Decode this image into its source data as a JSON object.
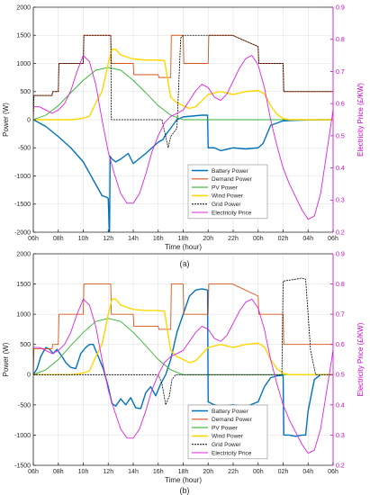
{
  "chart_data": [
    {
      "type": "line",
      "caption": "(a)",
      "xlabel": "Time (hour)",
      "ylabel": "Power (W)",
      "y2label": "Electricity Price (£/KW)",
      "xticklabels": [
        "06h",
        "08h",
        "10h",
        "12h",
        "14h",
        "16h",
        "18h",
        "20h",
        "22h",
        "00h",
        "02h",
        "04h",
        "06h"
      ],
      "xlim": [
        6,
        30
      ],
      "ylim": [
        -2000,
        2000
      ],
      "y2lim": [
        0.2,
        0.9
      ],
      "yticks": [
        -2000,
        -1500,
        -1000,
        -500,
        0,
        500,
        1000,
        1500,
        2000
      ],
      "y2ticks": [
        0.2,
        0.3,
        0.4,
        0.5,
        0.6,
        0.7,
        0.8,
        0.9
      ],
      "grid": true,
      "legend_position": "bottom-center",
      "series": [
        {
          "name": "Battery Power",
          "color": "#0072bd",
          "axis": "left",
          "width": 1.4,
          "x": [
            6,
            7,
            8,
            9,
            10,
            10.5,
            11,
            11.5,
            11.9,
            12.0,
            12.1,
            12.15,
            12.3,
            12.6,
            13,
            13.6,
            14,
            15,
            16,
            16.4,
            16.5,
            17,
            17.5,
            18,
            18.5,
            19,
            19.5,
            19.95,
            20.0,
            20.5,
            21,
            22,
            23,
            24,
            24.4,
            25,
            26,
            27,
            28,
            29,
            30
          ],
          "y": [
            0,
            -120,
            -300,
            -500,
            -750,
            -950,
            -1150,
            -1350,
            -1380,
            -1400,
            -2100,
            -650,
            -700,
            -750,
            -700,
            -600,
            -780,
            -600,
            -400,
            -350,
            -300,
            -150,
            0,
            50,
            60,
            70,
            80,
            80,
            -500,
            -500,
            -550,
            -500,
            -520,
            -500,
            -420,
            -100,
            -20,
            -10,
            -5,
            -2,
            0
          ]
        },
        {
          "name": "Demand Power",
          "color": "#d95319",
          "axis": "left",
          "width": 0.9,
          "x": [
            6,
            6.05,
            7.5,
            7.55,
            8,
            8.05,
            10,
            10.05,
            12.2,
            12.25,
            14,
            14.05,
            16,
            16.05,
            17,
            17.05,
            18,
            18.05,
            20,
            20.05,
            21.9,
            21.95,
            24,
            24.05,
            26,
            26.05,
            30
          ],
          "y": [
            0,
            430,
            430,
            500,
            500,
            1000,
            1000,
            1500,
            1500,
            1000,
            1000,
            800,
            800,
            750,
            750,
            1500,
            1500,
            1000,
            1000,
            1500,
            1500,
            1500,
            1300,
            1000,
            1000,
            500,
            500
          ]
        },
        {
          "name": "PV Power",
          "color": "#33b233",
          "axis": "left",
          "width": 0.9,
          "x": [
            6,
            7,
            8,
            9,
            10,
            11,
            12,
            13,
            14,
            15,
            16,
            17,
            18,
            18.5,
            30
          ],
          "y": [
            0,
            80,
            250,
            480,
            700,
            880,
            930,
            880,
            700,
            480,
            250,
            80,
            0,
            0,
            0
          ]
        },
        {
          "name": "Wind Power",
          "color": "#ffd700",
          "axis": "left",
          "width": 1.4,
          "x": [
            6,
            9,
            9.5,
            10,
            10.5,
            11,
            11.5,
            12,
            12.3,
            12.6,
            13,
            14,
            15,
            16,
            16.5,
            17,
            17.5,
            18,
            18.5,
            19,
            20,
            21,
            22,
            23,
            24,
            24.5,
            25,
            25.5,
            26,
            26.5,
            27,
            30
          ],
          "y": [
            0,
            0,
            10,
            30,
            60,
            300,
            500,
            1000,
            1250,
            1250,
            1150,
            1080,
            1060,
            1060,
            1050,
            400,
            300,
            250,
            200,
            230,
            450,
            500,
            450,
            500,
            520,
            460,
            250,
            100,
            20,
            0,
            0,
            0
          ]
        },
        {
          "name": "Grid Power",
          "color": "#000000",
          "axis": "left",
          "width": 0.8,
          "dash": "2,1",
          "x": [
            6,
            6.05,
            7.5,
            7.55,
            8,
            8.05,
            10,
            10.05,
            12.2,
            12.25,
            16.3,
            16.5,
            16.8,
            17,
            17.5,
            17.8,
            18,
            18.05,
            20,
            20.05,
            21.9,
            21.95,
            24,
            24.05,
            26,
            26.05,
            30
          ],
          "y": [
            0,
            430,
            430,
            500,
            500,
            1000,
            1000,
            1500,
            1500,
            0,
            0,
            -200,
            -500,
            -300,
            -150,
            1450,
            1500,
            1500,
            1500,
            1500,
            1500,
            1500,
            1300,
            1000,
            1000,
            500,
            500
          ]
        },
        {
          "name": "Electricity Price",
          "color": "#e020e0",
          "axis": "right",
          "width": 0.9,
          "x": [
            6,
            6.5,
            7,
            7.5,
            8,
            8.5,
            9,
            9.5,
            10,
            10.5,
            11,
            11.5,
            12,
            12.5,
            13,
            13.5,
            14,
            14.5,
            15,
            15.5,
            16,
            16.5,
            17,
            17.5,
            18,
            18.5,
            19,
            19.5,
            20,
            20.5,
            21,
            21.5,
            22,
            22.5,
            23,
            23.5,
            24,
            24.5,
            25,
            25.5,
            26,
            26.5,
            27,
            27.5,
            28,
            28.5,
            29,
            29.5,
            30
          ],
          "y": [
            0.59,
            0.59,
            0.58,
            0.57,
            0.58,
            0.6,
            0.64,
            0.7,
            0.75,
            0.73,
            0.66,
            0.55,
            0.45,
            0.38,
            0.32,
            0.29,
            0.29,
            0.32,
            0.38,
            0.45,
            0.5,
            0.54,
            0.56,
            0.57,
            0.58,
            0.61,
            0.64,
            0.66,
            0.65,
            0.62,
            0.61,
            0.63,
            0.67,
            0.71,
            0.74,
            0.75,
            0.72,
            0.65,
            0.55,
            0.47,
            0.4,
            0.35,
            0.31,
            0.27,
            0.24,
            0.25,
            0.32,
            0.45,
            0.58
          ]
        }
      ]
    },
    {
      "type": "line",
      "caption": "(b)",
      "xlabel": "Time (hour)",
      "ylabel": "Power (W)",
      "y2label": "Electricity Price (£/KW)",
      "xticklabels": [
        "06h",
        "08h",
        "10h",
        "12h",
        "14h",
        "16h",
        "18h",
        "20h",
        "22h",
        "00h",
        "02h",
        "04h",
        "06h"
      ],
      "xlim": [
        6,
        30
      ],
      "ylim": [
        -1500,
        2000
      ],
      "y2lim": [
        0.2,
        0.9
      ],
      "yticks": [
        -1500,
        -1000,
        -500,
        0,
        500,
        1000,
        1500,
        2000
      ],
      "y2ticks": [
        0.2,
        0.3,
        0.4,
        0.5,
        0.6,
        0.7,
        0.8,
        0.9
      ],
      "grid": true,
      "legend_position": "bottom-center",
      "series": [
        {
          "name": "Battery Power",
          "color": "#0072bd",
          "axis": "left",
          "width": 1.4,
          "x": [
            6,
            6.3,
            6.6,
            7,
            7.3,
            7.6,
            7.9,
            8.3,
            8.6,
            9,
            9.4,
            9.8,
            10.2,
            10.5,
            10.8,
            11.2,
            11.6,
            12,
            12.3,
            12.6,
            13,
            13.4,
            13.8,
            14.2,
            14.6,
            15,
            15.4,
            15.8,
            16.2,
            16.6,
            17,
            17.5,
            18,
            18.5,
            19,
            19.5,
            19.95,
            20,
            20.5,
            21,
            22,
            23,
            24,
            24.5,
            25,
            25.5,
            26,
            26.05,
            26.5,
            27,
            27.5,
            27.8,
            28,
            28.5,
            29,
            30
          ],
          "y": [
            0,
            100,
            300,
            450,
            420,
            350,
            420,
            300,
            200,
            120,
            100,
            350,
            450,
            500,
            500,
            300,
            100,
            -200,
            -480,
            -520,
            -400,
            -500,
            -380,
            -550,
            -560,
            -300,
            -200,
            -350,
            -150,
            0,
            250,
            700,
            1000,
            1300,
            1400,
            1420,
            1400,
            -450,
            -500,
            -520,
            -500,
            -530,
            -450,
            -200,
            -50,
            -20,
            -10,
            -1000,
            -1000,
            -1020,
            -1000,
            -1000,
            -600,
            -80,
            0,
            0
          ]
        },
        {
          "name": "Demand Power",
          "color": "#d95319",
          "axis": "left",
          "width": 0.9,
          "x": [
            6,
            6.05,
            7.5,
            7.55,
            8,
            8.05,
            10,
            10.05,
            12.2,
            12.25,
            14,
            14.05,
            16,
            16.05,
            17,
            17.05,
            18,
            18.05,
            20,
            20.05,
            21.9,
            21.95,
            24,
            24.05,
            26,
            26.05,
            30
          ],
          "y": [
            0,
            430,
            430,
            500,
            500,
            1000,
            1000,
            1500,
            1500,
            1000,
            1000,
            800,
            800,
            750,
            750,
            1500,
            1500,
            1000,
            1000,
            1500,
            1500,
            1500,
            1300,
            1000,
            1000,
            500,
            500
          ]
        },
        {
          "name": "PV Power",
          "color": "#33b233",
          "axis": "left",
          "width": 0.9,
          "x": [
            6,
            7,
            8,
            9,
            10,
            11,
            12,
            13,
            14,
            15,
            16,
            17,
            18,
            18.5,
            30
          ],
          "y": [
            0,
            80,
            250,
            480,
            700,
            880,
            930,
            880,
            700,
            480,
            250,
            80,
            0,
            0,
            0
          ]
        },
        {
          "name": "Wind Power",
          "color": "#ffd700",
          "axis": "left",
          "width": 1.4,
          "x": [
            6,
            9,
            9.5,
            10,
            10.5,
            11,
            11.5,
            12,
            12.3,
            12.6,
            13,
            14,
            15,
            16,
            16.5,
            17,
            17.5,
            18,
            18.5,
            19,
            20,
            21,
            22,
            23,
            24,
            24.5,
            25,
            25.5,
            26,
            26.5,
            27,
            30
          ],
          "y": [
            0,
            0,
            10,
            30,
            60,
            300,
            500,
            1000,
            1250,
            1250,
            1150,
            1080,
            1060,
            1060,
            1050,
            400,
            300,
            250,
            200,
            230,
            450,
            500,
            450,
            500,
            520,
            460,
            250,
            100,
            20,
            0,
            0,
            0
          ]
        },
        {
          "name": "Grid Power",
          "color": "#000000",
          "axis": "left",
          "width": 0.8,
          "dash": "2,1",
          "x": [
            6,
            8,
            12,
            16,
            16.3,
            16.6,
            16.9,
            17.1,
            17.4,
            18,
            19,
            20,
            21,
            22,
            24,
            25.9,
            26,
            26.1,
            27,
            27.5,
            27.8,
            28,
            28.2,
            28.6,
            30
          ],
          "y": [
            0,
            0,
            0,
            0,
            -150,
            -500,
            -350,
            -80,
            0,
            0,
            0,
            0,
            0,
            0,
            0,
            0,
            1550,
            1550,
            1580,
            1600,
            1580,
            1000,
            400,
            0,
            0
          ]
        },
        {
          "name": "Electricity Price",
          "color": "#e020e0",
          "axis": "right",
          "width": 0.9,
          "x": [
            6,
            6.5,
            7,
            7.5,
            8,
            8.5,
            9,
            9.5,
            10,
            10.5,
            11,
            11.5,
            12,
            12.5,
            13,
            13.5,
            14,
            14.5,
            15,
            15.5,
            16,
            16.5,
            17,
            17.5,
            18,
            18.5,
            19,
            19.5,
            20,
            20.5,
            21,
            21.5,
            22,
            22.5,
            23,
            23.5,
            24,
            24.5,
            25,
            25.5,
            26,
            26.5,
            27,
            27.5,
            28,
            28.5,
            29,
            29.5,
            30
          ],
          "y": [
            0.59,
            0.59,
            0.58,
            0.57,
            0.58,
            0.6,
            0.64,
            0.7,
            0.75,
            0.73,
            0.66,
            0.55,
            0.45,
            0.38,
            0.32,
            0.29,
            0.29,
            0.32,
            0.38,
            0.45,
            0.5,
            0.54,
            0.56,
            0.57,
            0.58,
            0.61,
            0.64,
            0.66,
            0.65,
            0.62,
            0.61,
            0.63,
            0.67,
            0.71,
            0.74,
            0.75,
            0.72,
            0.65,
            0.55,
            0.47,
            0.4,
            0.35,
            0.31,
            0.27,
            0.24,
            0.25,
            0.32,
            0.45,
            0.58
          ]
        }
      ]
    }
  ]
}
